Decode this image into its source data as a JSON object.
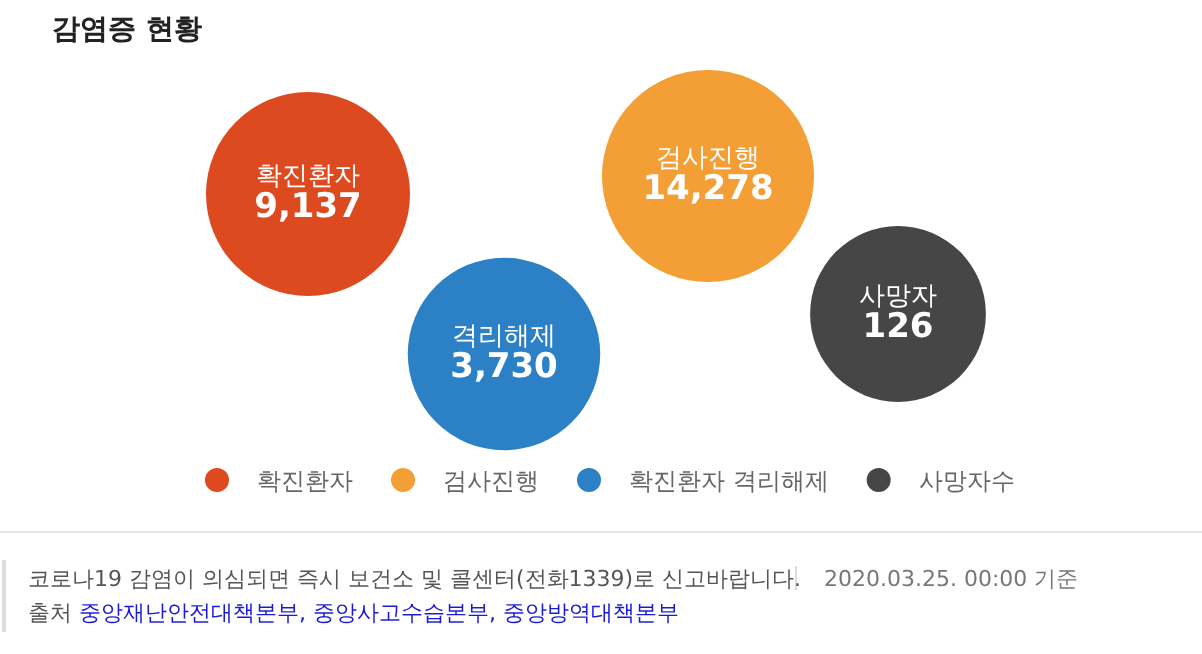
{
  "chart_data": {
    "type": "other",
    "title": "감염증 현황",
    "categories": [
      "확진환자",
      "검사진행",
      "격리해제",
      "사망자"
    ],
    "series": [
      {
        "name": "확진환자",
        "color": "#de4a20",
        "values": [
          9137,
          null,
          null,
          null
        ],
        "value_labels": [
          "9,137",
          null,
          null,
          null
        ]
      },
      {
        "name": "검사진행",
        "color": "#f39f36",
        "values": [
          null,
          14278,
          null,
          null
        ],
        "value_labels": [
          null,
          "14,278",
          null,
          null
        ]
      },
      {
        "name": "확진환자 격리해제",
        "color": "#2b80c6",
        "values": [
          null,
          null,
          3730,
          null
        ],
        "value_labels": [
          null,
          null,
          "3,730",
          null
        ]
      },
      {
        "name": "사망자수",
        "color": "#464646",
        "values": [
          null,
          null,
          null,
          126
        ],
        "value_labels": [
          null,
          null,
          null,
          "126"
        ]
      }
    ],
    "legend": "bottom",
    "annotations": [
      "코로나19 감염이 의심되면 즉시 보건소 및 콜센터(전화1339)로 신고바랍니다.",
      "2020.03.25. 00:00 기준",
      "출처 중앙재난안전대책본부, 중앙사고수습본부, 중앙방역대책본부"
    ]
  }
}
